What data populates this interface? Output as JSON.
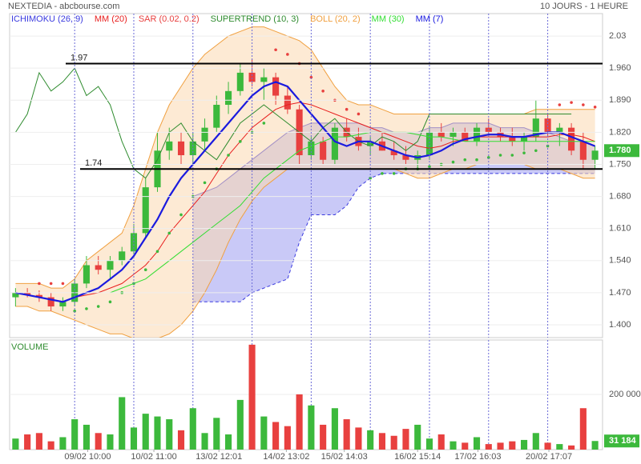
{
  "chart_data": [
    {
      "type": "candlestick",
      "title": "NEXTEDIA - abcbourse.com",
      "subtitle": "10 JOURS - 1 HEURE",
      "up_color": "#3cb93c",
      "down_color": "#e8403f",
      "xlim": [
        -0.5,
        49.5
      ],
      "ylim": [
        1.372,
        2.079
      ],
      "yticks": [
        2.03,
        {
          "value": 1.96,
          "label": "1.960"
        },
        {
          "value": 1.89,
          "label": "1.890"
        },
        {
          "value": 1.82,
          "label": "1.820"
        },
        {
          "value": 1.75,
          "label": "1.750"
        },
        {
          "value": 1.68,
          "label": "1.680"
        },
        {
          "value": 1.61,
          "label": "1.610"
        },
        {
          "value": 1.54,
          "label": "1.540"
        },
        {
          "value": 1.47,
          "label": "1.470"
        },
        {
          "value": 1.4,
          "label": "1.400"
        }
      ],
      "xgrid": [
        5,
        10,
        15,
        20,
        25,
        30,
        35,
        40,
        45
      ],
      "xticks": [
        {
          "value": 6.1,
          "label": "09/02 10:00"
        },
        {
          "value": 11.7,
          "label": "10/02 11:00"
        },
        {
          "value": 17.2,
          "label": "13/02 12:01"
        },
        {
          "value": 22.9,
          "label": "14/02 13:02"
        },
        {
          "value": 27.8,
          "label": "15/02 14:03"
        },
        {
          "value": 34,
          "label": "16/02 15:14"
        },
        {
          "value": 39.1,
          "label": "17/02 16:03"
        },
        {
          "value": 45.1,
          "label": "20/02 17:07"
        }
      ],
      "grid": true,
      "hlines": [
        {
          "value": 1.97,
          "label": "1.97"
        },
        {
          "value": 1.74,
          "label": "1.74"
        }
      ],
      "last_label": {
        "value": 1.78,
        "label": "1.780"
      },
      "open": [
        1.46,
        1.47,
        1.465,
        1.46,
        1.44,
        1.45,
        1.49,
        1.53,
        1.52,
        1.54,
        1.56,
        1.6,
        1.7,
        1.78,
        1.8,
        1.77,
        1.8,
        1.83,
        1.88,
        1.91,
        1.95,
        1.93,
        1.94,
        1.9,
        1.87,
        1.77,
        1.8,
        1.76,
        1.83,
        1.81,
        1.79,
        1.8,
        1.78,
        1.77,
        1.76,
        1.77,
        1.82,
        1.81,
        1.82,
        1.8,
        1.83,
        1.82,
        1.81,
        1.8,
        1.81,
        1.85,
        1.82,
        1.83,
        1.8,
        1.76
      ],
      "high": [
        1.48,
        1.48,
        1.475,
        1.47,
        1.46,
        1.5,
        1.55,
        1.55,
        1.55,
        1.57,
        1.62,
        1.72,
        1.82,
        1.83,
        1.82,
        1.82,
        1.85,
        1.9,
        1.93,
        1.97,
        1.98,
        1.96,
        1.95,
        1.92,
        1.88,
        1.81,
        1.81,
        1.84,
        1.85,
        1.83,
        1.81,
        1.82,
        1.8,
        1.79,
        1.78,
        1.83,
        1.84,
        1.83,
        1.83,
        1.84,
        1.85,
        1.83,
        1.83,
        1.82,
        1.89,
        1.86,
        1.84,
        1.84,
        1.82,
        1.79
      ],
      "low": [
        1.44,
        1.46,
        1.45,
        1.43,
        1.43,
        1.44,
        1.48,
        1.51,
        1.5,
        1.53,
        1.55,
        1.59,
        1.69,
        1.76,
        1.75,
        1.75,
        1.78,
        1.82,
        1.86,
        1.9,
        1.92,
        1.89,
        1.88,
        1.86,
        1.75,
        1.76,
        1.75,
        1.75,
        1.8,
        1.78,
        1.77,
        1.78,
        1.76,
        1.75,
        1.74,
        1.76,
        1.8,
        1.79,
        1.8,
        1.79,
        1.81,
        1.8,
        1.79,
        1.78,
        1.8,
        1.81,
        1.79,
        1.77,
        1.74,
        1.74
      ],
      "close": [
        1.47,
        1.465,
        1.46,
        1.44,
        1.45,
        1.49,
        1.53,
        1.52,
        1.54,
        1.56,
        1.6,
        1.7,
        1.78,
        1.8,
        1.77,
        1.8,
        1.83,
        1.88,
        1.91,
        1.95,
        1.93,
        1.94,
        1.9,
        1.87,
        1.77,
        1.8,
        1.76,
        1.83,
        1.81,
        1.79,
        1.8,
        1.78,
        1.77,
        1.76,
        1.77,
        1.82,
        1.81,
        1.82,
        1.8,
        1.83,
        1.82,
        1.81,
        1.8,
        1.81,
        1.85,
        1.82,
        1.83,
        1.78,
        1.76,
        1.78
      ],
      "series": [
        {
          "name": "ICHIMOKU (26, 9)",
          "color": "#3a3adf",
          "style": "band",
          "fill": "#9c9cf0",
          "lower_dash": true,
          "upper": [
            null,
            null,
            null,
            null,
            null,
            null,
            null,
            null,
            null,
            null,
            null,
            null,
            null,
            null,
            null,
            1.68,
            1.69,
            1.7,
            1.72,
            1.74,
            1.76,
            1.78,
            1.8,
            1.82,
            1.83,
            1.84,
            1.84,
            1.84,
            1.84,
            1.84,
            1.83,
            1.83,
            1.82,
            1.82,
            1.82,
            1.83,
            1.83,
            1.84,
            1.84,
            1.84,
            1.84,
            1.83,
            1.83,
            1.83,
            1.82,
            1.82,
            1.81,
            1.8,
            1.8,
            1.79
          ],
          "lower": [
            null,
            null,
            null,
            null,
            null,
            null,
            null,
            null,
            null,
            null,
            null,
            null,
            null,
            null,
            null,
            1.45,
            1.45,
            1.45,
            1.45,
            1.45,
            1.47,
            1.48,
            1.49,
            1.5,
            1.58,
            1.64,
            1.64,
            1.64,
            1.66,
            1.7,
            1.72,
            1.73,
            1.73,
            1.73,
            1.73,
            1.73,
            1.73,
            1.73,
            1.73,
            1.73,
            1.73,
            1.73,
            1.73,
            1.73,
            1.73,
            1.73,
            1.73,
            1.73,
            1.73,
            1.73
          ]
        },
        {
          "name": "MM (20)",
          "color": "#e8201f",
          "style": "line",
          "values": [
            null,
            null,
            null,
            null,
            null,
            1.46,
            1.465,
            1.47,
            1.48,
            1.49,
            1.51,
            1.53,
            1.56,
            1.6,
            1.63,
            1.66,
            1.69,
            1.73,
            1.77,
            1.8,
            1.83,
            1.85,
            1.87,
            1.88,
            1.885,
            1.88,
            1.87,
            1.86,
            1.85,
            1.84,
            1.83,
            1.82,
            1.81,
            1.8,
            1.79,
            1.785,
            1.79,
            1.8,
            1.805,
            1.81,
            1.81,
            1.81,
            1.81,
            1.81,
            1.81,
            1.81,
            1.815,
            1.815,
            1.81,
            1.8
          ]
        },
        {
          "name": "SAR (0.02, 0.2)",
          "color": "#e8403f",
          "style": "dots",
          "values": [
            null,
            null,
            1.49,
            1.49,
            1.49,
            1.43,
            1.435,
            1.44,
            1.45,
            1.47,
            1.49,
            1.52,
            1.56,
            1.6,
            1.64,
            1.68,
            1.71,
            1.74,
            1.77,
            1.8,
            1.82,
            1.84,
            2.0,
            1.99,
            1.97,
            1.94,
            1.91,
            1.89,
            1.87,
            1.86,
            1.72,
            1.73,
            1.73,
            1.74,
            1.74,
            1.745,
            1.75,
            1.755,
            1.76,
            1.76,
            1.765,
            1.77,
            1.77,
            1.775,
            1.78,
            1.79,
            1.88,
            1.885,
            1.88,
            1.875
          ]
        },
        {
          "name": "SUPERTREND (10, 3)",
          "color": "#2e8b2e",
          "style": "line",
          "values": [
            1.82,
            1.86,
            1.95,
            1.91,
            1.93,
            1.96,
            1.9,
            1.92,
            1.88,
            1.8,
            1.74,
            1.72,
            1.76,
            1.82,
            1.84,
            1.8,
            1.78,
            1.76,
            1.8,
            1.84,
            1.86,
            1.88,
            1.86,
            1.84,
            1.82,
            1.8,
            1.83,
            1.85,
            1.82,
            1.8,
            1.79,
            1.81,
            1.8,
            1.78,
            1.8,
            1.86,
            1.86,
            1.86,
            1.86,
            1.86,
            1.86,
            1.86,
            1.86,
            1.86,
            1.86,
            1.86,
            1.86,
            1.86,
            null,
            null
          ]
        },
        {
          "name": "BOLL (20, 2)",
          "color": "#f0a040",
          "style": "band",
          "fill": "#fbd9b0",
          "upper": [
            1.49,
            1.49,
            1.49,
            1.48,
            1.48,
            1.5,
            1.54,
            1.56,
            1.58,
            1.6,
            1.66,
            1.74,
            1.82,
            1.88,
            1.92,
            1.96,
            1.99,
            2.01,
            2.03,
            2.04,
            2.05,
            2.05,
            2.04,
            2.03,
            2.02,
            2.0,
            1.96,
            1.92,
            1.89,
            1.88,
            1.88,
            1.87,
            1.86,
            1.86,
            1.86,
            1.86,
            1.86,
            1.86,
            1.86,
            1.86,
            1.86,
            1.86,
            1.86,
            1.86,
            1.87,
            1.87,
            1.87,
            1.87,
            1.87,
            1.87
          ],
          "lower": [
            1.44,
            1.44,
            1.43,
            1.43,
            1.42,
            1.41,
            1.4,
            1.39,
            1.38,
            1.38,
            1.37,
            1.37,
            1.37,
            1.38,
            1.4,
            1.43,
            1.47,
            1.52,
            1.58,
            1.63,
            1.67,
            1.7,
            1.72,
            1.74,
            1.74,
            1.74,
            1.74,
            1.74,
            1.74,
            1.74,
            1.74,
            1.74,
            1.74,
            1.73,
            1.72,
            1.72,
            1.73,
            1.74,
            1.74,
            1.75,
            1.75,
            1.75,
            1.75,
            1.75,
            1.74,
            1.74,
            1.74,
            1.73,
            1.72,
            1.72
          ]
        },
        {
          "name": "MM (30)",
          "color": "#33dd33",
          "style": "line",
          "values": [
            null,
            null,
            null,
            null,
            null,
            null,
            null,
            null,
            1.47,
            1.48,
            1.49,
            1.5,
            1.52,
            1.54,
            1.56,
            1.58,
            1.6,
            1.62,
            1.64,
            1.66,
            1.69,
            1.72,
            1.74,
            1.76,
            1.78,
            1.79,
            1.8,
            1.81,
            1.81,
            1.815,
            1.82,
            1.82,
            1.82,
            1.82,
            1.815,
            1.81,
            1.81,
            1.805,
            1.8,
            1.8,
            1.8,
            1.8,
            1.8,
            1.8,
            1.8,
            1.8,
            1.8,
            1.8,
            1.8,
            1.8
          ]
        },
        {
          "name": "MM (7)",
          "color": "#1a1adf",
          "style": "line",
          "width": 2.2,
          "values": [
            1.47,
            1.465,
            1.46,
            1.455,
            1.45,
            1.46,
            1.47,
            1.48,
            1.5,
            1.52,
            1.55,
            1.59,
            1.63,
            1.68,
            1.72,
            1.75,
            1.78,
            1.81,
            1.84,
            1.87,
            1.9,
            1.92,
            1.93,
            1.92,
            1.89,
            1.86,
            1.83,
            1.8,
            1.79,
            1.8,
            1.8,
            1.79,
            1.78,
            1.77,
            1.765,
            1.77,
            1.78,
            1.795,
            1.805,
            1.81,
            1.815,
            1.815,
            1.81,
            1.81,
            1.815,
            1.82,
            1.82,
            1.81,
            1.8,
            1.79
          ]
        }
      ]
    },
    {
      "type": "bar",
      "title": "VOLUME",
      "ylim": [
        0,
        397000
      ],
      "yticks": [
        {
          "value": 200000,
          "label": "200 000"
        }
      ],
      "last_label": {
        "value": 31184,
        "label": "31 184"
      },
      "values": [
        40000,
        55000,
        60000,
        30000,
        45000,
        110000,
        90000,
        60000,
        55000,
        190000,
        80000,
        130000,
        120000,
        110000,
        70000,
        150000,
        60000,
        115000,
        55000,
        180000,
        380000,
        120000,
        100000,
        85000,
        200000,
        160000,
        90000,
        150000,
        110000,
        80000,
        70000,
        60000,
        50000,
        75000,
        90000,
        40000,
        55000,
        30000,
        25000,
        45000,
        20000,
        25000,
        30000,
        35000,
        60000,
        25000,
        20000,
        15000,
        150000,
        31184
      ]
    }
  ]
}
